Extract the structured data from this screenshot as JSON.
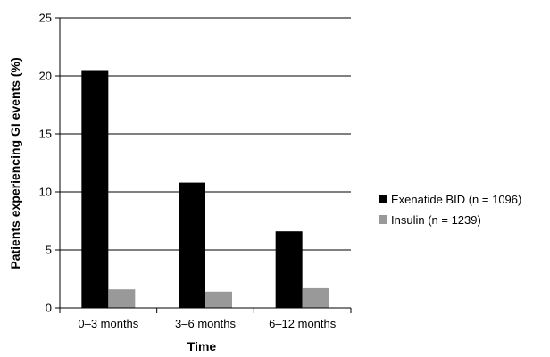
{
  "chart_data": {
    "type": "bar",
    "title": "",
    "xlabel": "Time",
    "ylabel": "Patients experiencing GI events (%)",
    "ylim": [
      0,
      25
    ],
    "yticks": [
      0,
      5,
      10,
      15,
      20,
      25
    ],
    "grid": true,
    "legend_position": "right",
    "categories": [
      "0–3 months",
      "3–6 months",
      "6–12 months"
    ],
    "series": [
      {
        "name": "Exenatide BID (n = 1096)",
        "color": "#000000",
        "values": [
          20.5,
          10.8,
          6.6
        ]
      },
      {
        "name": "Insulin (n = 1239)",
        "color": "#999999",
        "values": [
          1.6,
          1.4,
          1.7
        ]
      }
    ]
  }
}
